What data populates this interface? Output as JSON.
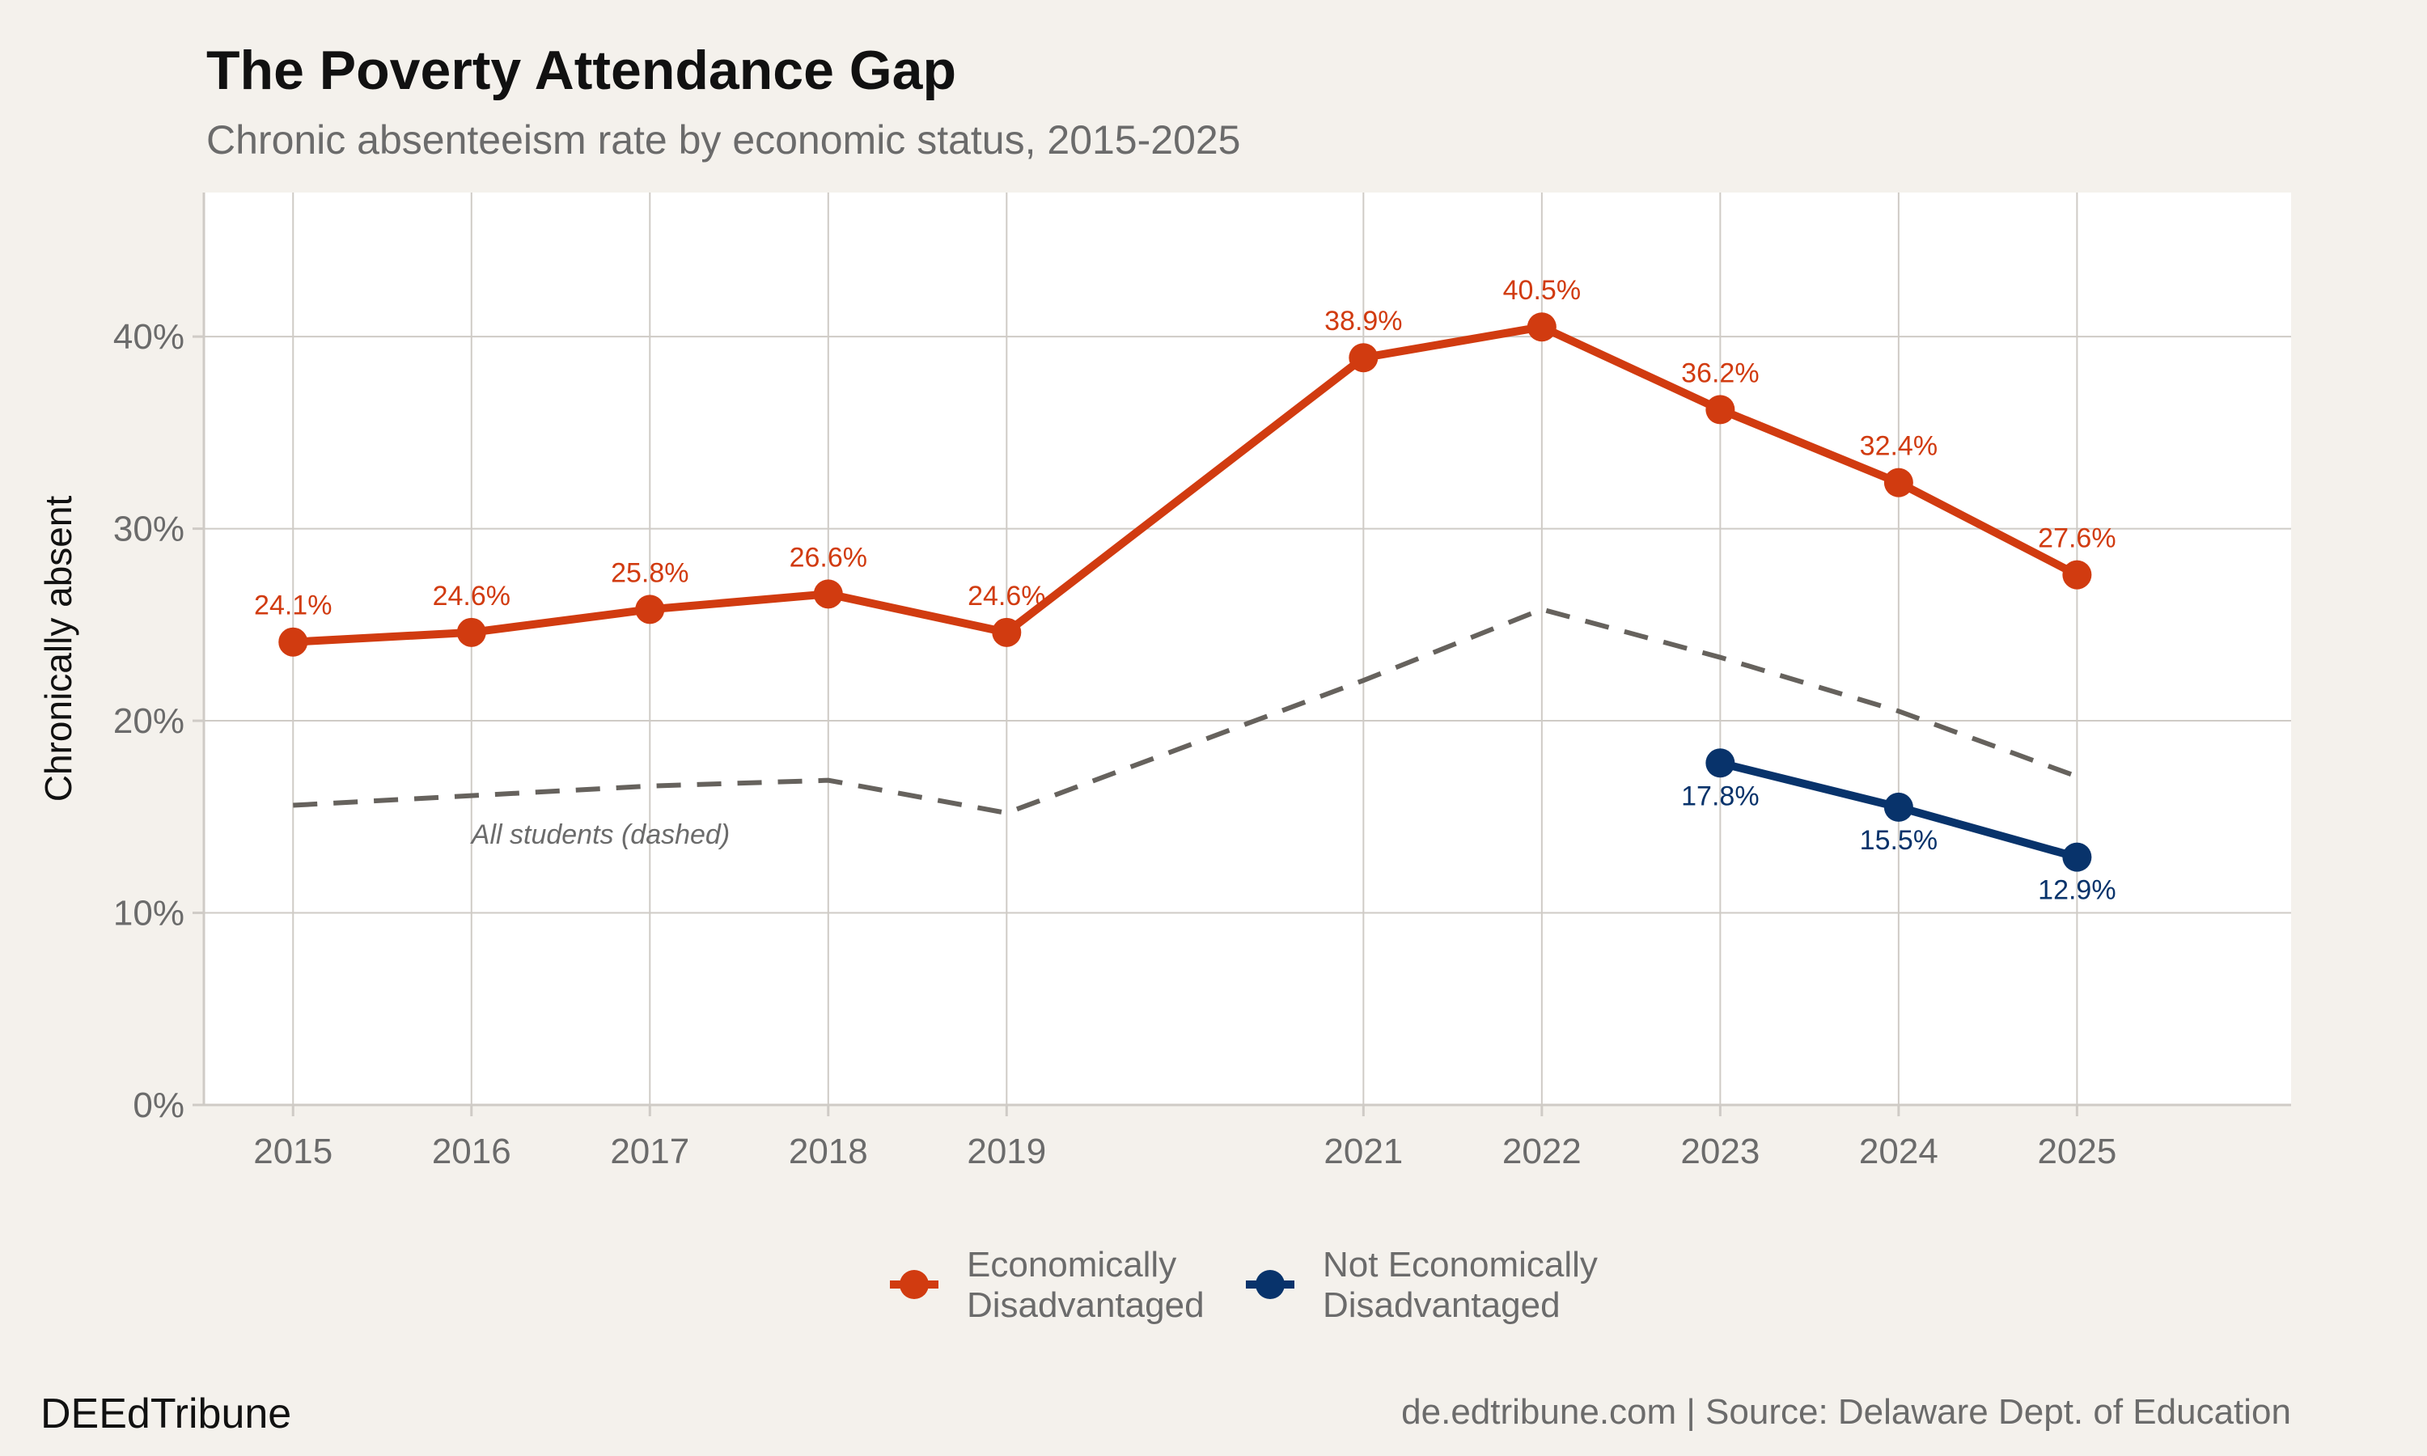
{
  "chart_data": {
    "type": "line",
    "title": "The Poverty Attendance Gap",
    "subtitle": "Chronic absenteeism rate by economic status, 2015-2025",
    "xlabel": "",
    "ylabel": "Chronically absent",
    "x_ticks": [
      2015,
      2016,
      2017,
      2018,
      2019,
      2021,
      2022,
      2023,
      2024,
      2025
    ],
    "xlim": [
      2014.5,
      2026.2
    ],
    "ylim": [
      0,
      47.5
    ],
    "y_ticks": [
      0,
      10,
      20,
      30,
      40
    ],
    "y_tick_labels": [
      "0%",
      "10%",
      "20%",
      "30%",
      "40%"
    ],
    "grid": true,
    "legend_position": "bottom",
    "series": [
      {
        "name": "Economically Disadvantaged",
        "legend_lines": [
          "Economically",
          "Disadvantaged"
        ],
        "color": "#d13b10",
        "style": "solid",
        "points": [
          {
            "x": 2015,
            "y": 24.1,
            "label": "24.1%"
          },
          {
            "x": 2016,
            "y": 24.6,
            "label": "24.6%"
          },
          {
            "x": 2017,
            "y": 25.8,
            "label": "25.8%"
          },
          {
            "x": 2018,
            "y": 26.6,
            "label": "26.6%"
          },
          {
            "x": 2019,
            "y": 24.6,
            "label": "24.6%"
          },
          {
            "x": 2021,
            "y": 38.9,
            "label": "38.9%"
          },
          {
            "x": 2022,
            "y": 40.5,
            "label": "40.5%"
          },
          {
            "x": 2023,
            "y": 36.2,
            "label": "36.2%"
          },
          {
            "x": 2024,
            "y": 32.4,
            "label": "32.4%"
          },
          {
            "x": 2025,
            "y": 27.6,
            "label": "27.6%"
          }
        ]
      },
      {
        "name": "Not Economically Disadvantaged",
        "legend_lines": [
          "Not Economically",
          "Disadvantaged"
        ],
        "color": "#08336b",
        "style": "solid",
        "points": [
          {
            "x": 2023,
            "y": 17.8,
            "label": "17.8%"
          },
          {
            "x": 2024,
            "y": 15.5,
            "label": "15.5%"
          },
          {
            "x": 2025,
            "y": 12.9,
            "label": "12.9%"
          }
        ]
      }
    ],
    "all_students": {
      "color": "#66625d",
      "style": "dashed",
      "points": [
        {
          "x": 2015,
          "y": 15.6
        },
        {
          "x": 2016,
          "y": 16.1
        },
        {
          "x": 2017,
          "y": 16.6
        },
        {
          "x": 2018,
          "y": 16.9
        },
        {
          "x": 2019,
          "y": 15.2
        },
        {
          "x": 2021,
          "y": 22.1
        },
        {
          "x": 2022,
          "y": 25.8
        },
        {
          "x": 2023,
          "y": 23.3
        },
        {
          "x": 2024,
          "y": 20.5
        },
        {
          "x": 2025,
          "y": 17.1
        }
      ]
    },
    "annotation": {
      "text": "All students (dashed)",
      "x": 2016,
      "y": 13.6
    }
  },
  "footer": {
    "brand": "DEEdTribune",
    "source": "de.edtribune.com | Source: Delaware Dept. of Education"
  },
  "colors": {
    "background": "#f4f1ec",
    "panel": "#ffffff",
    "grid": "#cfcbc6"
  }
}
